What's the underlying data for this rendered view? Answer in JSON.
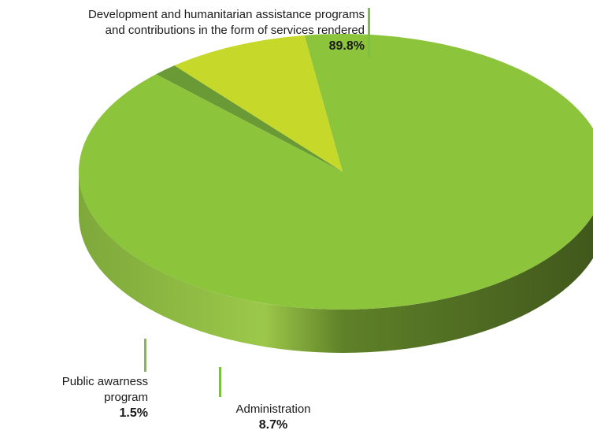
{
  "chart_data": {
    "type": "pie",
    "title": "",
    "slices": [
      {
        "label": "Development and humanitarian assistance programs and contributions in the form of services rendered",
        "line1": "Development and humanitarian assistance programs",
        "line2": "and contributions in the form of services rendered",
        "value": 89.8,
        "value_text": "89.8%",
        "color": "#8cc43c"
      },
      {
        "label": "Public awarness program",
        "line1": "Public awarness",
        "line2": "program",
        "value": 1.5,
        "value_text": "1.5%",
        "color": "#6a9a35"
      },
      {
        "label": "Administration",
        "line1": "Administration",
        "value": 8.7,
        "value_text": "8.7%",
        "color": "#c6d92a"
      }
    ]
  },
  "colors": {
    "side_dark": "#4f6b22",
    "side_light": "#8fbf3e",
    "leader": "#7ac143"
  }
}
